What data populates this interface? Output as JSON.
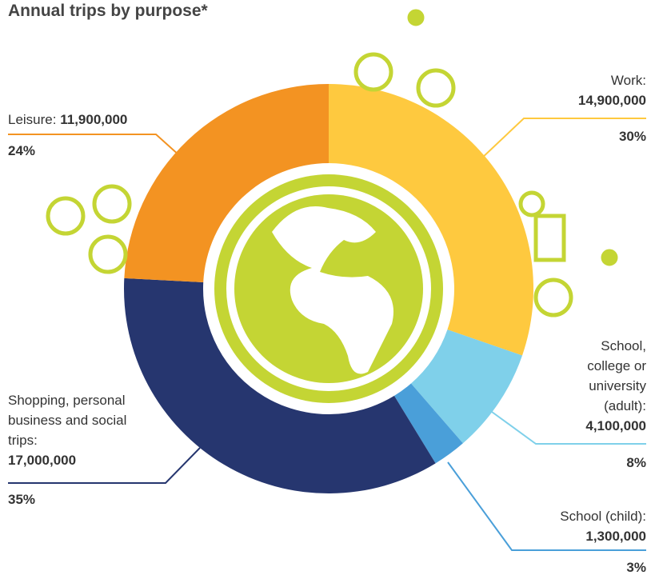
{
  "chart_data": {
    "type": "donut",
    "title": "Annual trips by purpose*",
    "categories": [
      "Work:",
      "School, college or university (adult):",
      "School (child):",
      "Shopping, personal business and social trips:",
      "Leisure:"
    ],
    "values": [
      14900000,
      4100000,
      1300000,
      17000000,
      11900000
    ],
    "value_labels": [
      "14,900,000",
      "4,100,000",
      "1,300,000",
      "17,000,000",
      "11,900,000"
    ],
    "percents": [
      30,
      8,
      3,
      35,
      24
    ],
    "percent_labels": [
      "30%",
      "8%",
      "3%",
      "35%",
      "24%"
    ],
    "colors": [
      "#fec93f",
      "#7fd0ea",
      "#4a9fd9",
      "#26366f",
      "#f39322"
    ]
  }
}
